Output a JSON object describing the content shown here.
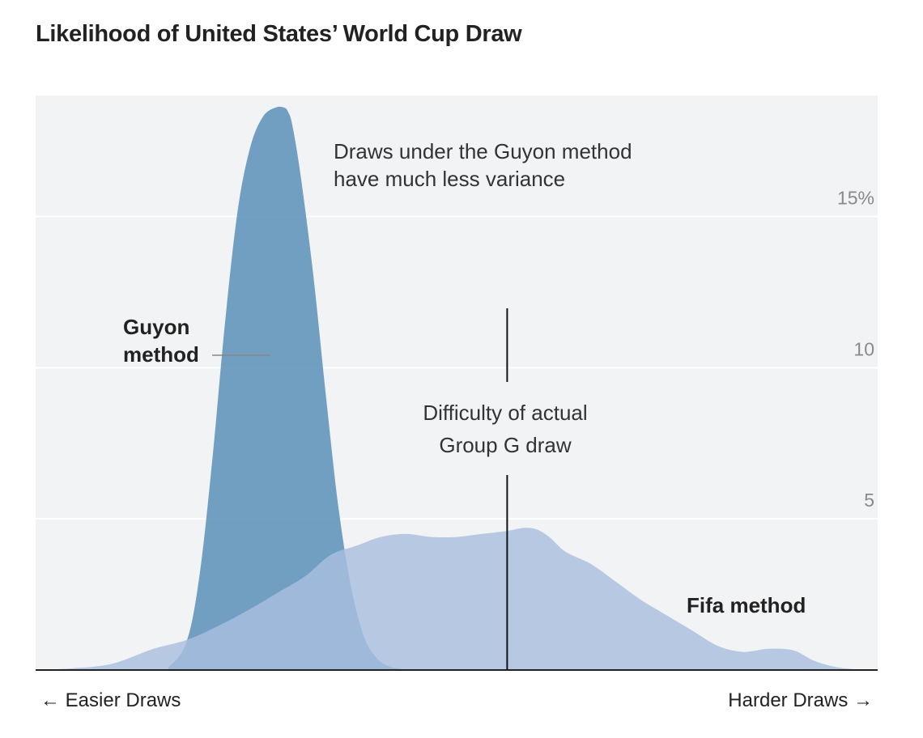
{
  "title": "Likelihood of United States’ World Cup Draw",
  "x_axis": {
    "left": "← Easier Draws",
    "right": "Harder Draws →"
  },
  "annotations": {
    "guyon_note": [
      "Draws under the Guyon method",
      "have much less variance"
    ],
    "actual_draw": [
      "Difficulty of actual",
      "Group G draw"
    ]
  },
  "labels": {
    "guyon": [
      "Guyon",
      "method"
    ],
    "fifa": "Fifa method"
  },
  "colors": {
    "plot_bg": "#f2f3f5",
    "guyon": "#5d93bb",
    "fifa": "#a9bedf",
    "gridline": "#ffffff",
    "tick": "#8a8a8a"
  },
  "chart_data": {
    "type": "area",
    "title": "Likelihood of United States’ World Cup Draw",
    "xlabel": "",
    "ylabel": "",
    "x_range": [
      0,
      100
    ],
    "ylim": [
      0,
      19
    ],
    "y_ticks": [
      {
        "value": 5,
        "label": "5"
      },
      {
        "value": 10,
        "label": "10"
      },
      {
        "value": 15,
        "label": "15%"
      }
    ],
    "grid": true,
    "series": [
      {
        "name": "Guyon method",
        "x": [
          0,
          14,
          16,
          18,
          19.5,
          21,
          22.5,
          24,
          25.5,
          27,
          28.5,
          29.5,
          30,
          30.5,
          31.5,
          33,
          34.5,
          36,
          37.5,
          39,
          40.5,
          42,
          44,
          46,
          100
        ],
        "y": [
          0,
          0,
          0.15,
          1.0,
          3.2,
          7.0,
          11.5,
          15.2,
          17.3,
          18.3,
          18.6,
          18.6,
          18.45,
          18.0,
          16.3,
          13.0,
          9.0,
          5.3,
          2.7,
          1.1,
          0.4,
          0.12,
          0.02,
          0,
          0
        ]
      },
      {
        "name": "Fifa method",
        "x": [
          0,
          4,
          9,
          14,
          18,
          22,
          26,
          29,
          32,
          35,
          38,
          41,
          44,
          47,
          50,
          53,
          56,
          58,
          59.5,
          61,
          63,
          66,
          69,
          72,
          75,
          78,
          81,
          84,
          87,
          90,
          92.5,
          95,
          97.5,
          100
        ],
        "y": [
          0,
          0.05,
          0.2,
          0.7,
          1.0,
          1.5,
          2.1,
          2.6,
          3.1,
          3.8,
          4.1,
          4.4,
          4.5,
          4.4,
          4.4,
          4.5,
          4.6,
          4.7,
          4.65,
          4.4,
          3.9,
          3.5,
          2.9,
          2.3,
          1.8,
          1.3,
          0.8,
          0.6,
          0.7,
          0.65,
          0.3,
          0.1,
          0.02,
          0
        ]
      }
    ],
    "actual_draw_x": 56
  }
}
